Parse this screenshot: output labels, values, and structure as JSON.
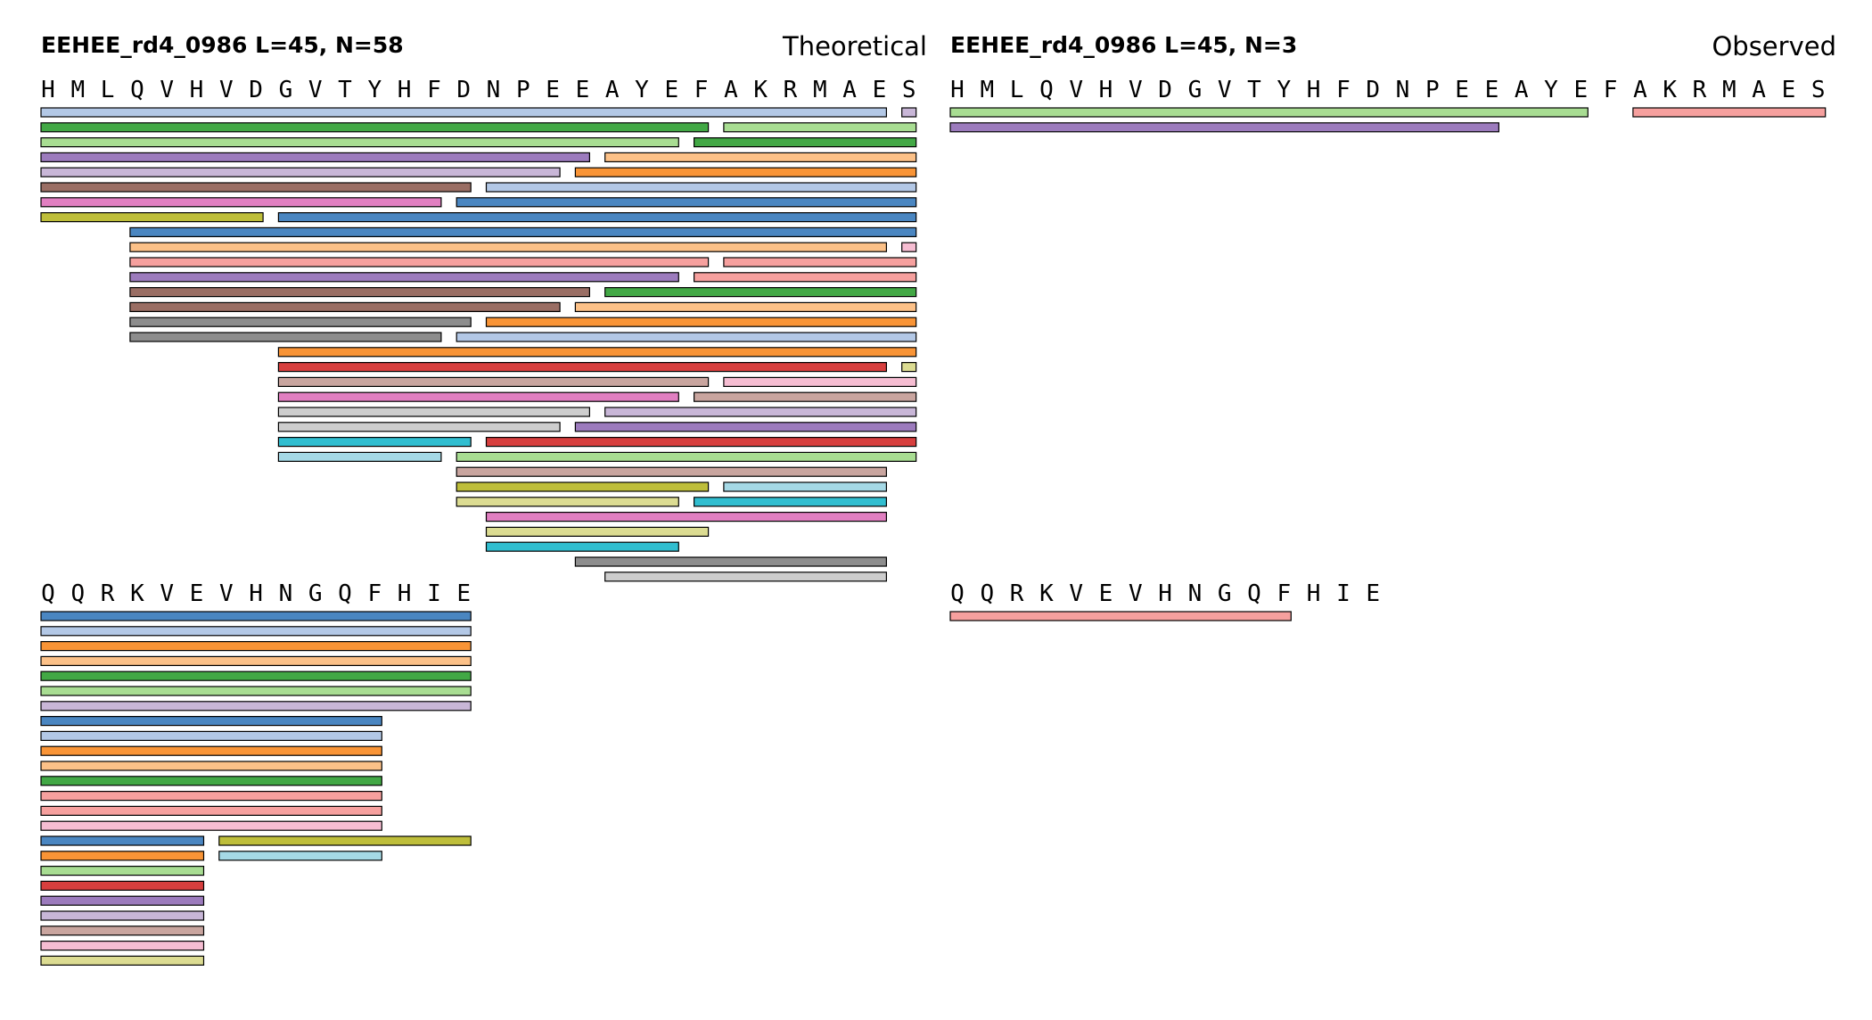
{
  "colors": {
    "blue": "#4a86c1",
    "lightblue": "#b3c8e6",
    "orange": "#f99436",
    "peach": "#fcc188",
    "green": "#42a845",
    "lightgreen": "#a8dd92",
    "red": "#d73f3e",
    "pink": "#f6a09e",
    "purple": "#9c7bbd",
    "lavender": "#c8b6d7",
    "brown": "#9a6e64",
    "tan": "#c9a59f",
    "magenta": "#e17fc1",
    "lightpink": "#f6bdd2",
    "gray": "#8d8d8d",
    "lightgray": "#cdcdcd",
    "olive": "#bebe3a",
    "khaki": "#dcdc92",
    "cyan": "#31bed0",
    "skyblue": "#a5d9e6"
  },
  "chart_data": [
    {
      "type": "peptide-coverage",
      "title": "EEHEE_rd4_0986  L=45, N=58",
      "label": "Theoretical",
      "blocks": [
        {
          "sequence": "HMLQVHVDGVTYHFDNPEEAYEFAKRMAES",
          "rows": [
            [
              [
                1,
                29,
                "lightblue"
              ],
              [
                30,
                30,
                "lavender"
              ]
            ],
            [
              [
                1,
                23,
                "green"
              ],
              [
                24,
                30,
                "lightgreen"
              ]
            ],
            [
              [
                1,
                22,
                "lightgreen"
              ],
              [
                23,
                30,
                "green"
              ]
            ],
            [
              [
                1,
                19,
                "purple"
              ],
              [
                20,
                30,
                "peach"
              ]
            ],
            [
              [
                1,
                18,
                "lavender"
              ],
              [
                19,
                30,
                "orange"
              ]
            ],
            [
              [
                1,
                15,
                "brown"
              ],
              [
                16,
                30,
                "lightblue"
              ]
            ],
            [
              [
                1,
                14,
                "magenta"
              ],
              [
                15,
                30,
                "blue"
              ]
            ],
            [
              [
                1,
                8,
                "olive"
              ],
              [
                9,
                30,
                "blue"
              ]
            ],
            [
              [
                4,
                30,
                "blue"
              ]
            ],
            [
              [
                4,
                29,
                "peach"
              ],
              [
                30,
                30,
                "lightpink"
              ]
            ],
            [
              [
                4,
                23,
                "pink"
              ],
              [
                24,
                30,
                "pink"
              ]
            ],
            [
              [
                4,
                22,
                "purple"
              ],
              [
                23,
                30,
                "pink"
              ]
            ],
            [
              [
                4,
                19,
                "brown"
              ],
              [
                20,
                30,
                "green"
              ]
            ],
            [
              [
                4,
                18,
                "brown"
              ],
              [
                19,
                30,
                "peach"
              ]
            ],
            [
              [
                4,
                15,
                "gray"
              ],
              [
                16,
                30,
                "orange"
              ]
            ],
            [
              [
                4,
                14,
                "gray"
              ],
              [
                15,
                30,
                "lightblue"
              ]
            ],
            [
              [
                9,
                30,
                "orange"
              ]
            ],
            [
              [
                9,
                29,
                "red"
              ],
              [
                30,
                30,
                "khaki"
              ]
            ],
            [
              [
                9,
                23,
                "tan"
              ],
              [
                24,
                30,
                "lightpink"
              ]
            ],
            [
              [
                9,
                22,
                "magenta"
              ],
              [
                23,
                30,
                "tan"
              ]
            ],
            [
              [
                9,
                19,
                "lightgray"
              ],
              [
                20,
                30,
                "lavender"
              ]
            ],
            [
              [
                9,
                18,
                "lightgray"
              ],
              [
                19,
                30,
                "purple"
              ]
            ],
            [
              [
                9,
                15,
                "cyan"
              ],
              [
                16,
                30,
                "red"
              ]
            ],
            [
              [
                9,
                14,
                "skyblue"
              ],
              [
                15,
                30,
                "lightgreen"
              ]
            ],
            [
              [
                15,
                29,
                "tan"
              ]
            ],
            [
              [
                15,
                23,
                "olive"
              ],
              [
                24,
                29,
                "skyblue"
              ]
            ],
            [
              [
                15,
                22,
                "khaki"
              ],
              [
                23,
                29,
                "cyan"
              ]
            ],
            [
              [
                16,
                29,
                "magenta"
              ]
            ],
            [
              [
                16,
                23,
                "khaki"
              ]
            ],
            [
              [
                16,
                22,
                "cyan"
              ]
            ],
            [
              [
                19,
                29,
                "gray"
              ]
            ],
            [
              [
                20,
                29,
                "lightgray"
              ]
            ]
          ]
        },
        {
          "sequence": "QQRKVEVHNGQFHIE",
          "rows": [
            [
              [
                1,
                15,
                "blue"
              ]
            ],
            [
              [
                1,
                15,
                "lightblue"
              ]
            ],
            [
              [
                1,
                15,
                "orange"
              ]
            ],
            [
              [
                1,
                15,
                "peach"
              ]
            ],
            [
              [
                1,
                15,
                "green"
              ]
            ],
            [
              [
                1,
                15,
                "lightgreen"
              ]
            ],
            [
              [
                1,
                15,
                "lavender"
              ]
            ],
            [
              [
                1,
                12,
                "blue"
              ]
            ],
            [
              [
                1,
                12,
                "lightblue"
              ]
            ],
            [
              [
                1,
                12,
                "orange"
              ]
            ],
            [
              [
                1,
                12,
                "peach"
              ]
            ],
            [
              [
                1,
                12,
                "green"
              ]
            ],
            [
              [
                1,
                12,
                "pink"
              ]
            ],
            [
              [
                1,
                12,
                "pink"
              ]
            ],
            [
              [
                1,
                12,
                "lightpink"
              ]
            ],
            [
              [
                1,
                6,
                "blue"
              ],
              [
                7,
                15,
                "olive"
              ]
            ],
            [
              [
                1,
                6,
                "orange"
              ],
              [
                7,
                12,
                "skyblue"
              ]
            ],
            [
              [
                1,
                6,
                "lightgreen"
              ]
            ],
            [
              [
                1,
                6,
                "red"
              ]
            ],
            [
              [
                1,
                6,
                "purple"
              ]
            ],
            [
              [
                1,
                6,
                "lavender"
              ]
            ],
            [
              [
                1,
                6,
                "tan"
              ]
            ],
            [
              [
                1,
                6,
                "lightpink"
              ]
            ],
            [
              [
                1,
                6,
                "khaki"
              ]
            ]
          ]
        }
      ]
    },
    {
      "type": "peptide-coverage",
      "title": "EEHEE_rd4_0986  L=45, N=3",
      "label": "Observed",
      "blocks": [
        {
          "sequence": "HMLQVHVDGVTYHFDNPEEAYEFAKRMAES",
          "rows": [
            [
              [
                1,
                22,
                "lightgreen"
              ],
              [
                24,
                30,
                "pink"
              ]
            ],
            [
              [
                1,
                19,
                "purple"
              ]
            ]
          ]
        },
        {
          "sequence": "QQRKVEVHNGQFHIE",
          "rows": [
            [
              [
                1,
                12,
                "pink"
              ]
            ]
          ]
        }
      ]
    }
  ]
}
